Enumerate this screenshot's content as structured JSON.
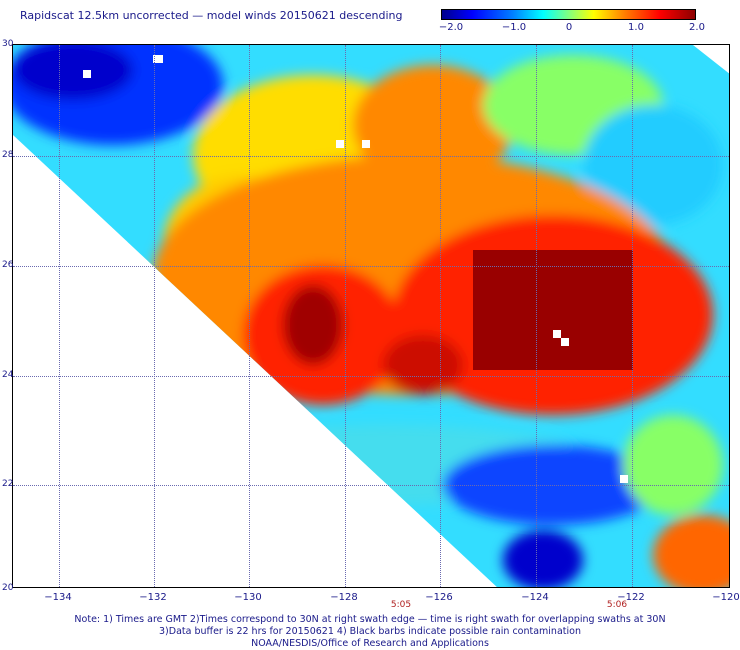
{
  "title": "Rapidscat 12.5km uncorrected — model winds 20150621 descending",
  "colorbar": {
    "labels": [
      "−2.0",
      "−1.0",
      "0",
      "1.0",
      "2.0"
    ],
    "stops": [
      "#00008c",
      "#0000ff",
      "#0080ff",
      "#00ffff",
      "#80ff80",
      "#ffff00",
      "#ff8000",
      "#ff0000",
      "#8c0000"
    ]
  },
  "map": {
    "lat_labels": [
      "30",
      "28",
      "26",
      "24",
      "22",
      "20"
    ],
    "lon_labels": [
      "−134",
      "−132",
      "−130",
      "−128",
      "−126",
      "−124",
      "−122",
      "−120"
    ],
    "time_labels": [
      "5:05",
      "5:06"
    ],
    "lon_range": [
      -135,
      -120
    ],
    "lat_range": [
      20,
      30
    ]
  },
  "notes": {
    "line1": "Note: 1) Times are GMT 2)Times correspond to 30N at right swath edge — time is right swath for overlapping swaths at 30N",
    "line2": "3)Data buffer is 22 hrs for 20150621 4) Black barbs indicate possible rain contamination",
    "line3": "NOAA/NESDIS/Office of Research and Applications"
  }
}
